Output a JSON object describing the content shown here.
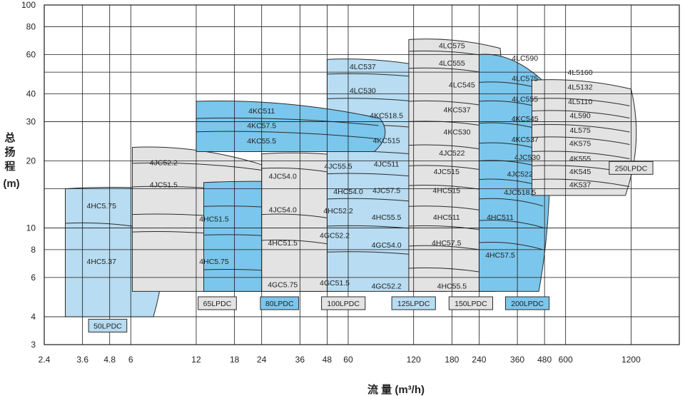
{
  "chart_data": {
    "type": "area",
    "xlabel": "流 量 (m³/h)",
    "ylabel_chars": [
      "总",
      "扬",
      "程"
    ],
    "ylabel_unit": "(m)",
    "x_scale": "log",
    "y_scale": "log",
    "xlim": [
      2.4,
      2000
    ],
    "ylim": [
      3,
      100
    ],
    "x_ticks": [
      2.4,
      3.6,
      4.8,
      6,
      12,
      18,
      24,
      36,
      48,
      60,
      120,
      180,
      240,
      360,
      480,
      600,
      1200
    ],
    "x_tick_labels": [
      "2.4",
      "3.6",
      "4.8",
      "6",
      "12",
      "18",
      "24",
      "36",
      "48",
      "60",
      "120",
      "180",
      "240",
      "360",
      "480",
      "600",
      "1200"
    ],
    "y_ticks": [
      3,
      4,
      6,
      8,
      10,
      20,
      30,
      40,
      60,
      80,
      100
    ],
    "y_tick_labels": [
      "3",
      "4",
      "6",
      "8",
      "10",
      "20",
      "30",
      "40",
      "60",
      "80",
      "100"
    ],
    "grid": true,
    "colors": {
      "light": "#b8dcf2",
      "medium": "#7bc6ec",
      "grey": "#e3e3e3",
      "edge": "#2b2b2b",
      "grid": "#1a1a1a"
    },
    "regions": [
      {
        "name": "50LPDC",
        "color": "light",
        "q": [
          3.0,
          8.1
        ],
        "h_top": [
          15.0,
          15.0
        ],
        "h_bot": [
          4.0,
          4.0
        ],
        "curves": [
          10.5
        ]
      },
      {
        "name": "65LPDC",
        "color": "grey",
        "q": [
          6.1,
          25.0
        ],
        "h_top": [
          23.0,
          19.0
        ],
        "h_bot": [
          5.2,
          5.2
        ],
        "curves": [
          19.5,
          15.3,
          11.5,
          9.6
        ]
      },
      {
        "name": "80LPDC",
        "color": "medium",
        "q": [
          13.0,
          48.0
        ],
        "h_top": [
          16.0,
          15.8
        ],
        "h_bot": [
          5.2,
          5.2
        ],
        "curves": [
          12.5,
          9.3,
          6.5
        ]
      },
      {
        "name": "100LPDC",
        "color": "grey",
        "q": [
          24.0,
          60.0
        ],
        "h_top": [
          21.5,
          21.0
        ],
        "h_bot": [
          5.2,
          5.2
        ],
        "curves": [
          18.5,
          11.5,
          8.8
        ]
      },
      {
        "name": "125LPDC",
        "color": "light",
        "q": [
          48.0,
          180.0
        ],
        "h_top": [
          57.0,
          50.0
        ],
        "h_bot": [
          5.2,
          5.2
        ],
        "curves": [
          49.0,
          38.0,
          29.0,
          22.0,
          17.5,
          13.5,
          10.2,
          7.8
        ]
      },
      {
        "name": "150LPDC",
        "color": "grey",
        "q": [
          114.0,
          300.0
        ],
        "h_top": [
          70.0,
          64.0
        ],
        "h_bot": [
          5.2,
          5.2
        ],
        "curves": [
          62.0,
          52.0,
          37.0,
          30.0,
          23.5,
          19.0,
          15.5,
          12.5,
          10.2,
          8.3,
          6.6
        ]
      },
      {
        "name": "200LPDC",
        "color": "medium",
        "q": [
          240.0,
          480.0
        ],
        "h_top": [
          60.0,
          45.0
        ],
        "h_bot": [
          5.2,
          5.2
        ],
        "curves": [
          45.0,
          37.0,
          29.5,
          24.0,
          20.0,
          16.5,
          13.5,
          10.8,
          8.6
        ]
      },
      {
        "name": "250LPDC",
        "color": "grey",
        "q": [
          420.0,
          1200.0
        ],
        "h_top": [
          46.0,
          42.0
        ],
        "h_bot": [
          14.0,
          14.0
        ],
        "curves": [
          38.0,
          33.5,
          29.0,
          25.5,
          22.0,
          19.0,
          16.5
        ]
      },
      {
        "name": "4KC",
        "color": "medium",
        "q": [
          12.0,
          84.0
        ],
        "h_top": [
          37.0,
          31.0
        ],
        "h_bot": [
          22.0,
          22.0
        ],
        "curves": [
          31.0,
          27.0
        ]
      }
    ],
    "region_labels": [
      "50LPDC",
      "65LPDC",
      "80LPDC",
      "100LPDC",
      "125LPDC",
      "150LPDC",
      "200LPDC",
      "250LPDC"
    ],
    "model_labels": [
      "4HC5.75",
      "4HC5.37",
      "4JC52.2",
      "4JC51.5",
      "4HC51.5",
      "4HC5.75",
      "4KC511",
      "4KC57.5",
      "4KC55.5",
      "4JC54.0",
      "4JC54.0",
      "4HC51.5",
      "4GC5.75",
      "4JC55.5",
      "4HC54.0",
      "4HC52.2",
      "4GC52.2",
      "4GC51.5",
      "4LC537",
      "4LC530",
      "4KC518.5",
      "4KC515",
      "4JC511",
      "4JC57.5",
      "4HC55.5",
      "4GC54.0",
      "4GC52.2",
      "4HC55.5",
      "4LC575",
      "4LC555",
      "4LC545",
      "4KC537",
      "4KC530",
      "4JC522",
      "4JC515",
      "4HC515",
      "4HC511",
      "4HC57.5",
      "4LC590",
      "4LC575",
      "4LC555",
      "4KC545",
      "4KC537",
      "4JC530",
      "4JC522",
      "4JC518.5",
      "4HC511",
      "4HC57.5",
      "4L5160",
      "4L5132",
      "4L5110",
      "4L590",
      "4L575",
      "4K575",
      "4K555",
      "4K545",
      "4K537"
    ]
  }
}
